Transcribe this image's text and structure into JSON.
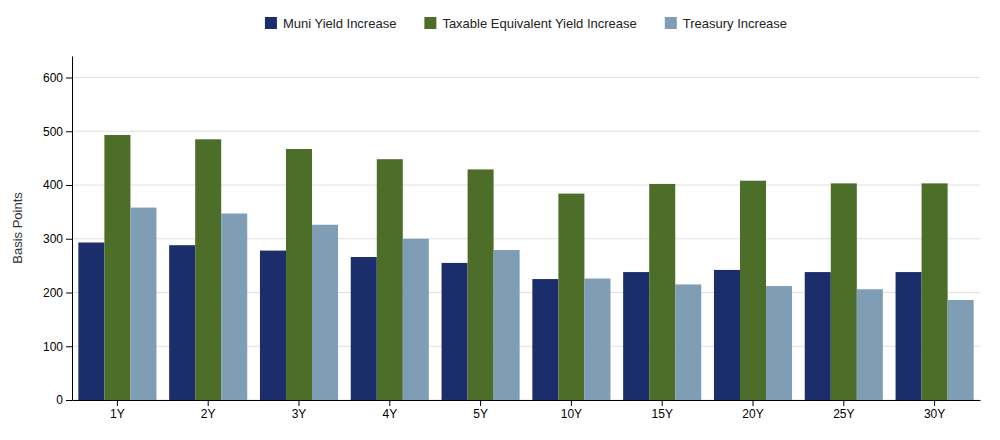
{
  "chart_data": {
    "type": "bar",
    "categories": [
      "1Y",
      "2Y",
      "3Y",
      "4Y",
      "5Y",
      "10Y",
      "15Y",
      "20Y",
      "25Y",
      "30Y"
    ],
    "series": [
      {
        "name": "Muni Yield Increase",
        "color": "#1b2d6b",
        "values": [
          293,
          288,
          278,
          266,
          255,
          225,
          238,
          242,
          238,
          238
        ]
      },
      {
        "name": "Taxable Equivalent Yield Increase",
        "color": "#4d6e28",
        "values": [
          493,
          485,
          467,
          448,
          429,
          384,
          402,
          408,
          403,
          403
        ]
      },
      {
        "name": "Treasury Increase",
        "color": "#7f9db5",
        "values": [
          358,
          347,
          326,
          300,
          279,
          226,
          215,
          212,
          206,
          186
        ]
      }
    ],
    "ylabel": "Basis Points",
    "ylim": [
      0,
      640
    ],
    "yticks": [
      0,
      100,
      200,
      300,
      400,
      500,
      600
    ],
    "grid": true,
    "legend": "top"
  }
}
